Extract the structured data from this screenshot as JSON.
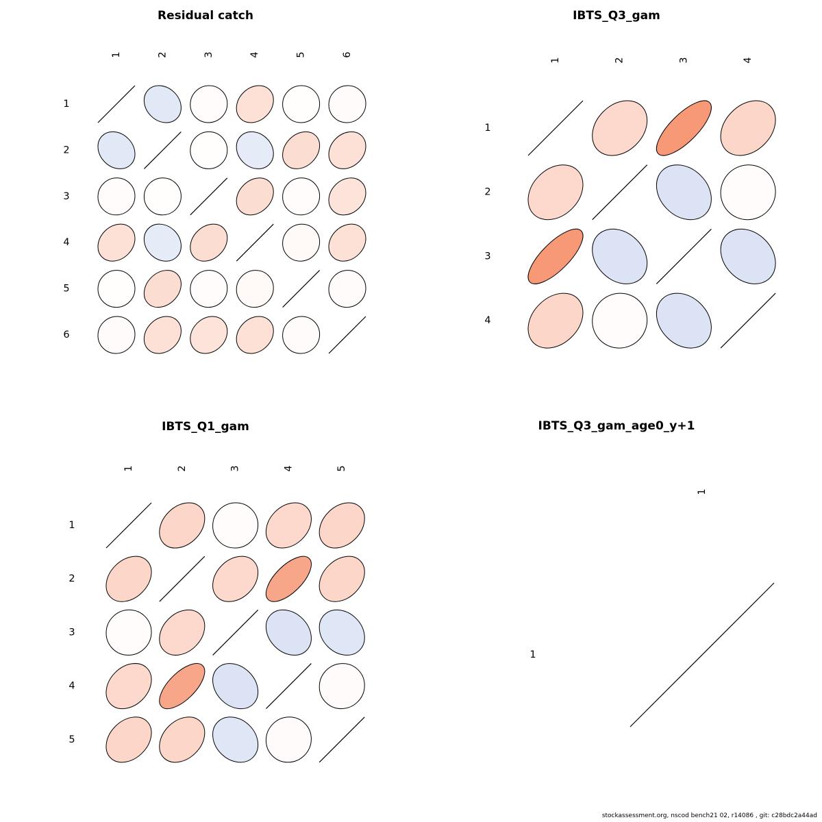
{
  "footer": "stockassessment.org, nscod bench21 02, r14086 , git: c28bdc2a44ad",
  "colors": {
    "positive_base": "#F4764A",
    "negative_base": "#6E8FD4",
    "outline": "#000000",
    "zero_fill": "#ffffff"
  },
  "chart_data": [
    {
      "type": "correlation_ellipse_matrix",
      "title": "Residual catch",
      "labels": [
        "1",
        "2",
        "3",
        "4",
        "5",
        "6"
      ],
      "matrix": [
        [
          1,
          -0.2,
          0.02,
          0.22,
          0.01,
          0.03
        ],
        [
          -0.2,
          1,
          0.01,
          -0.18,
          0.25,
          0.22
        ],
        [
          0.02,
          0.01,
          1,
          0.25,
          0.02,
          0.2
        ],
        [
          0.22,
          -0.18,
          0.25,
          1,
          0.04,
          0.22
        ],
        [
          0.01,
          0.25,
          0.02,
          0.04,
          1,
          0.03
        ],
        [
          0.03,
          0.22,
          0.2,
          0.22,
          0.03,
          1
        ]
      ]
    },
    {
      "type": "correlation_ellipse_matrix",
      "title": "IBTS_Q3_gam",
      "labels": [
        "1",
        "2",
        "3",
        "4"
      ],
      "matrix": [
        [
          1,
          0.28,
          0.75,
          0.3
        ],
        [
          0.28,
          1,
          -0.25,
          0.02
        ],
        [
          0.75,
          -0.25,
          1,
          -0.25
        ],
        [
          0.3,
          0.02,
          -0.25,
          1
        ]
      ]
    },
    {
      "type": "correlation_ellipse_matrix",
      "title": "IBTS_Q1_gam",
      "labels": [
        "1",
        "2",
        "3",
        "4",
        "5"
      ],
      "matrix": [
        [
          1,
          0.3,
          0.02,
          0.28,
          0.3
        ],
        [
          0.3,
          1,
          0.28,
          0.65,
          0.3
        ],
        [
          0.02,
          0.28,
          1,
          -0.25,
          -0.22
        ],
        [
          0.28,
          0.65,
          -0.25,
          1,
          0.03
        ],
        [
          0.3,
          0.3,
          -0.22,
          0.03,
          1
        ]
      ]
    },
    {
      "type": "correlation_ellipse_matrix",
      "title": "IBTS_Q3_gam_age0_y+1",
      "labels": [
        "1"
      ],
      "matrix": [
        [
          1
        ]
      ]
    }
  ]
}
